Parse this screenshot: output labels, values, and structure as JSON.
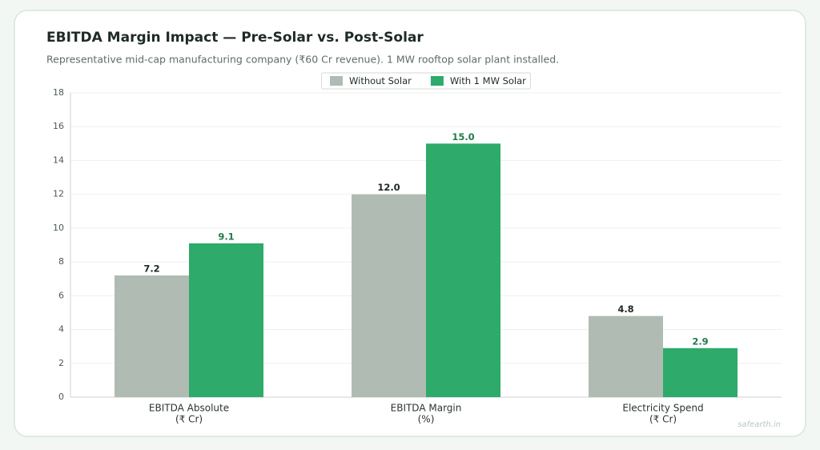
{
  "chart_data": {
    "type": "bar",
    "title": "EBITDA Margin Impact — Pre-Solar vs. Post-Solar",
    "subtitle": "Representative mid-cap manufacturing company (₹60 Cr revenue). 1 MW rooftop solar plant installed.",
    "categories": [
      [
        "EBITDA Absolute",
        "(₹ Cr)"
      ],
      [
        "EBITDA Margin",
        "(%)"
      ],
      [
        "Electricity Spend",
        "(₹ Cr)"
      ]
    ],
    "series": [
      {
        "name": "Without Solar",
        "color": "#b0bcb3",
        "label_color": "#1f2a24",
        "values": [
          7.2,
          12,
          4.8
        ],
        "value_labels": [
          "7.2",
          "12.0",
          "4.8"
        ]
      },
      {
        "name": "With 1 MW Solar",
        "color": "#2eaa6a",
        "label_color": "#237a4d",
        "values": [
          9.1,
          15,
          2.9
        ],
        "value_labels": [
          "9.1",
          "15.0",
          "2.9"
        ]
      }
    ],
    "ylim": [
      0,
      18
    ],
    "yticks": [
      0,
      2,
      4,
      6,
      8,
      10,
      12,
      14,
      16,
      18
    ],
    "grid": true,
    "legend": "top",
    "watermark": "safearth.in"
  }
}
